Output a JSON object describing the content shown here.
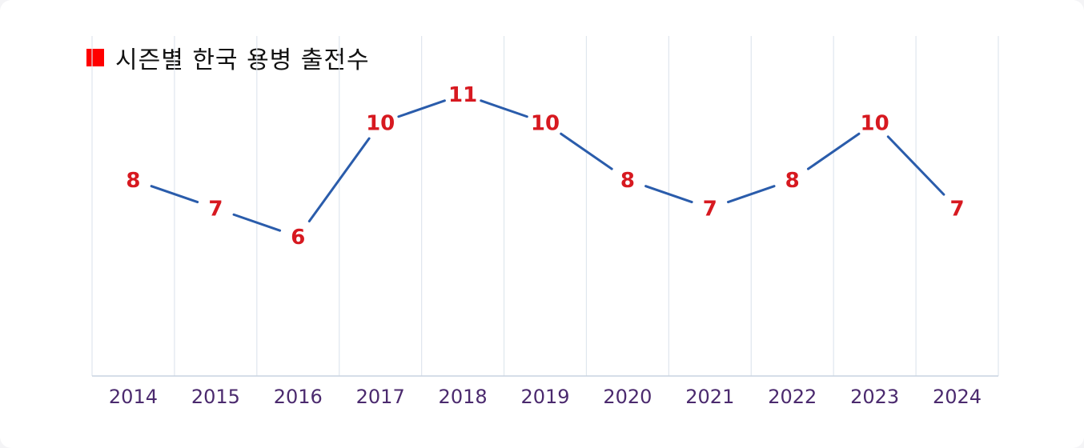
{
  "chart_data": {
    "type": "line",
    "title": "시즌별 한국 용병 출전수",
    "xlabel": "",
    "ylabel": "",
    "categories": [
      "2014",
      "2015",
      "2016",
      "2017",
      "2018",
      "2019",
      "2020",
      "2021",
      "2022",
      "2023",
      "2024"
    ],
    "series": [
      {
        "name": "시즌별 한국 용병 출전수",
        "values": [
          8,
          7,
          6,
          10,
          11,
          10,
          8,
          7,
          8,
          10,
          7
        ]
      }
    ],
    "ylim": [
      0,
      12
    ],
    "grid": "vertical",
    "legend": "top-left",
    "data_labels": true
  },
  "colors": {
    "line": "#2a5cab",
    "data_label": "#d71920",
    "legend_swatch": "#ff0000",
    "tick_label": "#4b2a6e",
    "grid": "#dfe6ee",
    "axis": "#c9d4e0"
  }
}
